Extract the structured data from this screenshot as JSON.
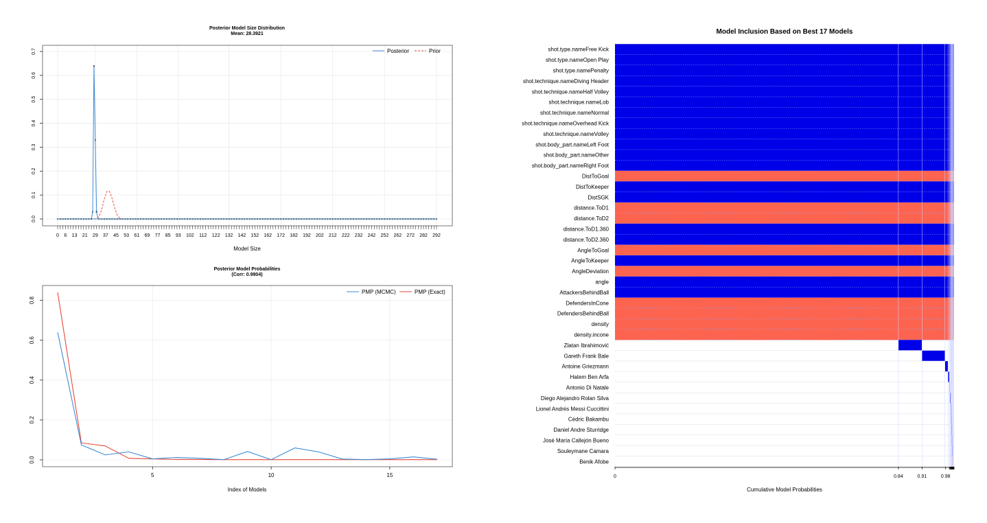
{
  "chart_data": [
    {
      "type": "line",
      "title": "Posterior Model Size Distribution",
      "subtitle": "Mean: 28.3921",
      "xlabel": "Model Size",
      "ylabel": "",
      "xlim": [
        0,
        292
      ],
      "ylim": [
        0,
        0.7
      ],
      "yticks": [
        "0.0",
        "0.1",
        "0.2",
        "0.3",
        "0.4",
        "0.5",
        "0.6",
        "0.7"
      ],
      "xticks": [
        "0",
        "6",
        "13",
        "21",
        "29",
        "37",
        "45",
        "53",
        "61",
        "69",
        "77",
        "85",
        "93",
        "102",
        "112",
        "122",
        "132",
        "142",
        "152",
        "162",
        "172",
        "182",
        "192",
        "202",
        "212",
        "222",
        "232",
        "242",
        "252",
        "262",
        "272",
        "282",
        "292"
      ],
      "legend": [
        "Posterior",
        "Prior"
      ],
      "legend_position": "top-right",
      "series": [
        {
          "name": "Posterior",
          "style": "solid",
          "color": "#3c8ad4",
          "x": [
            26,
            27,
            28,
            29,
            30,
            31,
            32
          ],
          "values": [
            0,
            0.03,
            0.64,
            0.33,
            0.03,
            0,
            0
          ]
        },
        {
          "name": "Prior",
          "style": "dashed",
          "color": "#e8493a",
          "x": [
            28,
            30,
            32,
            34,
            36,
            38,
            40,
            42,
            44,
            46,
            48,
            50
          ],
          "values": [
            0,
            0.001,
            0.01,
            0.04,
            0.085,
            0.115,
            0.115,
            0.085,
            0.045,
            0.015,
            0.003,
            0
          ]
        }
      ]
    },
    {
      "type": "line",
      "title": "Posterior Model Probabilities",
      "subtitle": "(Corr: 0.9904)",
      "xlabel": "Index of Models",
      "ylabel": "",
      "xlim": [
        1,
        17
      ],
      "ylim": [
        0,
        0.84
      ],
      "yticks": [
        "0.0",
        "0.2",
        "0.4",
        "0.6",
        "0.8"
      ],
      "xticks": [
        "5",
        "10",
        "15"
      ],
      "legend": [
        "PMP (MCMC)",
        "PMP (Exact)"
      ],
      "legend_position": "top-right",
      "categories": [
        1,
        2,
        3,
        4,
        5,
        6,
        7,
        8,
        9,
        10,
        11,
        12,
        13,
        14,
        15,
        16,
        17
      ],
      "series": [
        {
          "name": "PMP (MCMC)",
          "color": "#3c8ad4",
          "values": [
            0.64,
            0.075,
            0.025,
            0.04,
            0.005,
            0.012,
            0.008,
            0.001,
            0.042,
            0.001,
            0.06,
            0.04,
            0.004,
            0.001,
            0.005,
            0.015,
            0.003
          ]
        },
        {
          "name": "PMP (Exact)",
          "color": "#e8493a",
          "values": [
            0.84,
            0.085,
            0.07,
            0.008,
            0.005,
            0.002,
            0.002,
            0.001,
            0.001,
            0.001,
            0.001,
            0.001,
            0.001,
            0.001,
            0.001,
            0.001,
            0.001
          ]
        }
      ]
    },
    {
      "type": "heatmap",
      "title": "Model Inclusion Based on Best  17  Models",
      "xlabel": "Cumulative Model Probabilities",
      "xticks": [
        {
          "label": "0",
          "value": 0
        },
        {
          "label": "0.84",
          "value": 0.84
        },
        {
          "label": "0.91",
          "value": 0.91
        },
        {
          "label": "0.98",
          "value": 0.98
        }
      ],
      "colors": {
        "positive": "#0000e8",
        "negative": "#fc6450",
        "none": "#ffffff",
        "grid": "#dcdcdc"
      },
      "variables": [
        "shot.type.nameFree Kick",
        "shot.type.nameOpen Play",
        "shot.type.namePenalty",
        "shot.technique.nameDiving Header",
        "shot.technique.nameHalf Volley",
        "shot.technique.nameLob",
        "shot.technique.nameNormal",
        "shot.technique.nameOverhead Kick",
        "shot.technique.nameVolley",
        "shot.body_part.nameLeft Foot",
        "shot.body_part.nameOther",
        "shot.body_part.nameRight Foot",
        "DistToGoal",
        "DistToKeeper",
        "DistSGK",
        "distance.ToD1",
        "distance.ToD2",
        "distance.ToD1.360",
        "distance.ToD2.360",
        "AngleToGoal",
        "AngleToKeeper",
        "AngleDeviation",
        "angle",
        "AttackersBehindBall",
        "DefendersInCone",
        "DefendersBehindBall",
        "density",
        "density.incone",
        "Zlatan Ibrahimović",
        "Gareth Frank Bale",
        "Antoine Griezmann",
        "Hatem Ben Arfa",
        "Antonio Di Natale",
        "Diego Alejandro Rolan Silva",
        "Lionel Andrés Messi Cuccittini",
        "Cédric Bakambu",
        "Daniel Andre Sturridge",
        "José María Callejón Bueno",
        "Souleymane Camara",
        "Benik Afobe"
      ],
      "model_pmp": [
        0.84,
        0.07,
        0.068,
        0.009,
        0.004,
        0.002,
        0.002,
        0.001,
        0.001,
        0.001,
        0.001,
        0.001,
        0.001,
        0.001,
        0.001,
        0.001,
        0.001
      ],
      "signs": [
        "+",
        "+",
        "+",
        "+",
        "+",
        "+",
        "+",
        "+",
        "+",
        "+",
        "+",
        "+",
        "-",
        "+",
        "+",
        "-",
        "-",
        "+",
        "+",
        "-",
        "+",
        "-",
        "+",
        "+",
        "-",
        "-",
        "-",
        "-"
      ],
      "indicator_models": [
        {
          "variable": "Zlatan Ibrahimović",
          "model": 2,
          "sign": "+"
        },
        {
          "variable": "Gareth Frank Bale",
          "model": 3,
          "sign": "+"
        },
        {
          "variable": "Antoine Griezmann",
          "model": 4,
          "sign": "+"
        },
        {
          "variable": "Hatem Ben Arfa",
          "model": 5,
          "sign": "+"
        },
        {
          "variable": "Antonio Di Natale",
          "model": 6,
          "sign": "-"
        },
        {
          "variable": "Diego Alejandro Rolan Silva",
          "model": 7,
          "sign": "+"
        },
        {
          "variable": "Lionel Andrés Messi Cuccittini",
          "model": 8,
          "sign": "+"
        },
        {
          "variable": "Cédric Bakambu",
          "model": 9,
          "sign": "+"
        },
        {
          "variable": "Daniel Andre Sturridge",
          "model": 10,
          "sign": "+"
        },
        {
          "variable": "José María Callejón Bueno",
          "model": 11,
          "sign": "+"
        },
        {
          "variable": "Souleymane Camara",
          "model": 12,
          "sign": "+"
        },
        {
          "variable": "Benik Afobe",
          "model": 13,
          "sign": "-"
        }
      ]
    }
  ]
}
